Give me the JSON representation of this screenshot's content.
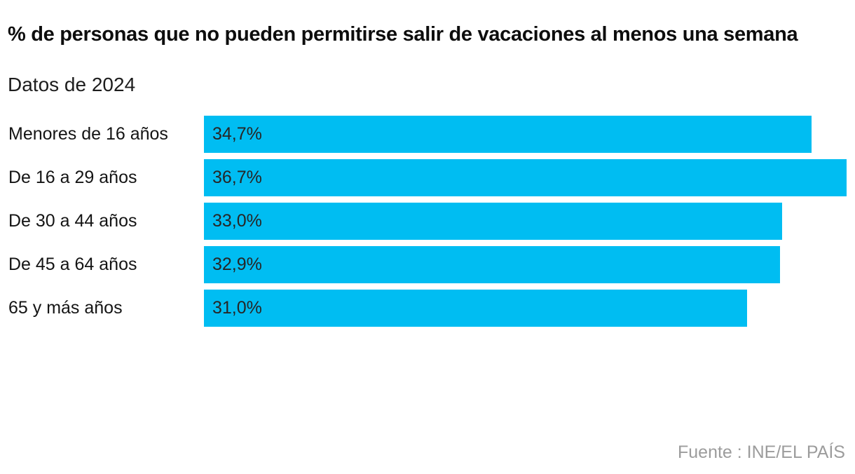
{
  "header": {
    "title": "% de personas que no pueden permitirse salir de vacaciones al menos una semana",
    "subtitle": "Datos de 2024"
  },
  "footer": {
    "source": "Fuente : INE/EL PAÍS"
  },
  "colors": {
    "background": "#ffffff",
    "bar": "#00bdf2",
    "title_text": "#0d0d0d",
    "label_text": "#141414",
    "value_text": "#262626",
    "source_text": "#9c9c9c"
  },
  "chart_data": {
    "type": "bar",
    "orientation": "horizontal",
    "title": "% de personas que no pueden permitirse salir de vacaciones al menos una semana",
    "subtitle": "Datos de 2024",
    "categories": [
      "Menores de 16 años",
      "De 16 a 29 años",
      "De 30 a 44 años",
      "De 45 a 64 años",
      "65 y más años"
    ],
    "values": [
      34.7,
      36.7,
      33.0,
      32.9,
      31.0
    ],
    "value_labels": [
      "34,7%",
      "36,7%",
      "33,0%",
      "32,9%",
      "31,0%"
    ],
    "xlim": [
      0,
      36.7
    ],
    "grid": false,
    "legend": "none",
    "bar_color": "#00bdf2",
    "source": "Fuente : INE/EL PAÍS"
  }
}
